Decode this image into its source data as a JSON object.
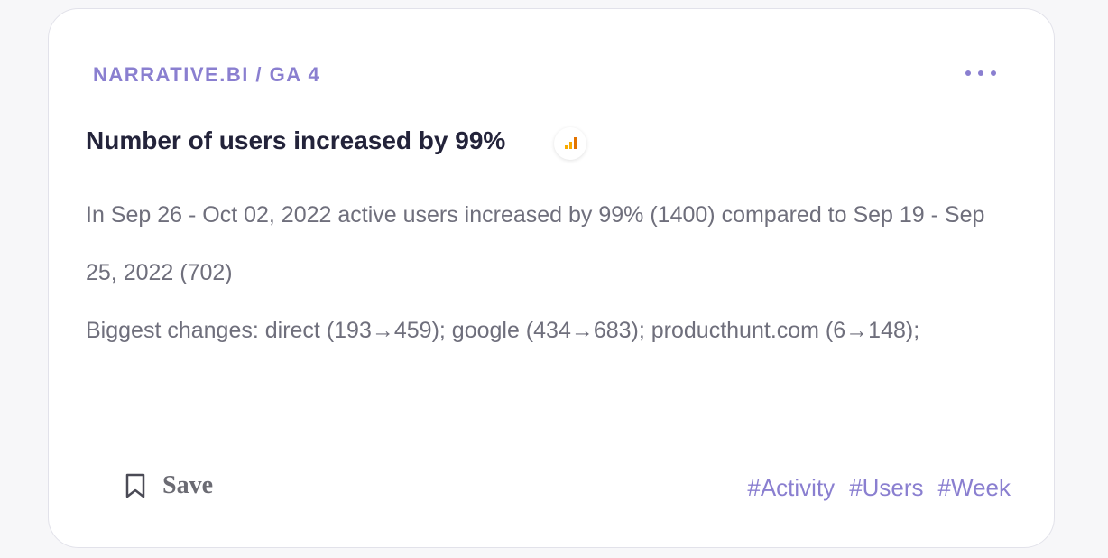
{
  "card": {
    "source": "NARRATIVE.BI / GA 4",
    "title": "Number of users increased by 99%",
    "paragraphs": [
      "In Sep 26 - Oct 02, 2022 active users increased by 99% (1400) compared to Sep 19 - Sep 25, 2022 (702)",
      "Biggest changes: direct (193→459); google (434→683); producthunt.com (6→148);"
    ],
    "save": "Save",
    "tags": [
      "#Activity",
      "#Users",
      "#Week"
    ]
  }
}
